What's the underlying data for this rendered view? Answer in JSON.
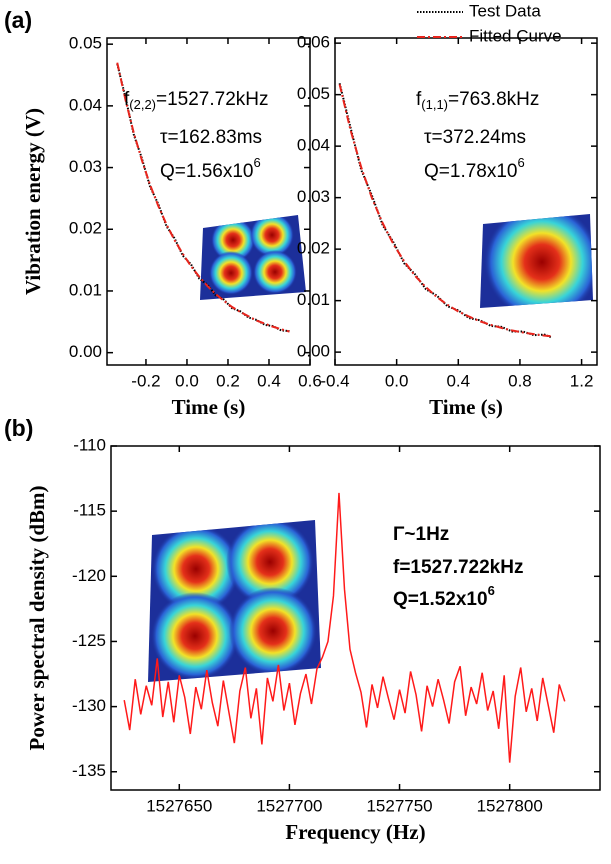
{
  "chart_data": [
    {
      "type": "line",
      "panel_label": "(a)",
      "ylabel": "Vibration energy (V)",
      "xlabel": "Time (s)",
      "xlim": [
        -0.39,
        0.6
      ],
      "ylim": [
        -0.002,
        0.051
      ],
      "xticks": [
        -0.2,
        {
          "value": 0,
          "label": "0.0"
        },
        0.2,
        0.4,
        0.6
      ],
      "yticks": [
        {
          "value": 0,
          "label": "0.00"
        },
        0.01,
        0.02,
        0.03,
        0.04,
        0.05
      ],
      "x": [
        -0.34,
        -0.3,
        -0.26,
        -0.22,
        -0.18,
        -0.14,
        -0.1,
        -0.06,
        -0.02,
        0.02,
        0.06,
        0.1,
        0.14,
        0.18,
        0.22,
        0.26,
        0.3,
        0.34,
        0.38,
        0.42,
        0.46,
        0.5
      ],
      "series": [
        {
          "color": "#000000",
          "linestyle": "dotted",
          "values": [
            0.0468,
            0.0414,
            0.0354,
            0.0315,
            0.0269,
            0.0241,
            0.0205,
            0.0185,
            0.0157,
            0.0143,
            0.012,
            0.011,
            0.0093,
            0.0086,
            0.0072,
            0.0067,
            0.0057,
            0.0053,
            0.0045,
            0.0043,
            0.0036,
            0.0035
          ]
        },
        {
          "color": "#e8241c",
          "linestyle": "dashdot",
          "values": [
            0.047,
            0.041,
            0.0357,
            0.0312,
            0.0272,
            0.0238,
            0.0208,
            0.0182,
            0.016,
            0.014,
            0.0123,
            0.0108,
            0.0095,
            0.0084,
            0.0074,
            0.0066,
            0.0059,
            0.0052,
            0.0047,
            0.0042,
            0.0038,
            0.0034
          ]
        }
      ],
      "annotations": [
        {
          "text": "f",
          "sub": "(2,2)",
          "after": "=1527.72kHz"
        },
        {
          "text": "τ=162.83ms"
        },
        {
          "text": "Q=1.56x10",
          "sup": "6"
        }
      ]
    },
    {
      "type": "line",
      "xlabel": "Time (s)",
      "legend": "upper right",
      "xlim": [
        -0.4,
        1.3
      ],
      "ylim": [
        -0.0025,
        0.061
      ],
      "xticks": [
        -0.4,
        {
          "value": 0,
          "label": "0.0"
        },
        0.4,
        0.8,
        1.2
      ],
      "yticks": [
        {
          "value": 0,
          "label": "0.00"
        },
        0.01,
        0.02,
        0.03,
        0.04,
        0.05,
        0.06
      ],
      "x": [
        -0.37,
        -0.3,
        -0.23,
        -0.16,
        -0.09,
        -0.02,
        0.05,
        0.12,
        0.19,
        0.26,
        0.33,
        0.4,
        0.47,
        0.54,
        0.61,
        0.68,
        0.75,
        0.82,
        0.89,
        0.96,
        1.0
      ],
      "series": [
        {
          "name": "Test Data",
          "color": "#000000",
          "linestyle": "dotted",
          "values": [
            0.0522,
            0.0437,
            0.0354,
            0.0304,
            0.0246,
            0.0213,
            0.0172,
            0.0151,
            0.0122,
            0.011,
            0.0089,
            0.0081,
            0.0066,
            0.0062,
            0.0051,
            0.0049,
            0.004,
            0.004,
            0.0033,
            0.0034,
            0.0029
          ]
        },
        {
          "name": "Fitted Curve",
          "color": "#e8241c",
          "linestyle": "dashdot",
          "values": [
            0.052,
            0.0432,
            0.0359,
            0.0299,
            0.025,
            0.0209,
            0.0176,
            0.0148,
            0.0126,
            0.0107,
            0.0092,
            0.0079,
            0.0069,
            0.006,
            0.0053,
            0.0047,
            0.0042,
            0.0038,
            0.0035,
            0.0032,
            0.0031
          ]
        }
      ],
      "annotations": [
        {
          "text": "f",
          "sub": "(1,1)",
          "after": "=763.8kHz"
        },
        {
          "text": "τ=372.24ms"
        },
        {
          "text": "Q=1.78x10",
          "sup": "6"
        }
      ]
    },
    {
      "type": "line",
      "panel_label": "(b)",
      "ylabel": "Power spectral density (dBm)",
      "xlabel": "Frequency (Hz)",
      "xlim": [
        1527619,
        1527841
      ],
      "ylim": [
        -136.4,
        -110
      ],
      "xticks": [
        1527650,
        1527700,
        1527750,
        1527800
      ],
      "yticks": [
        -135,
        -130,
        -125,
        -120,
        -115,
        -110
      ],
      "x": [
        1527625,
        1527627.5,
        1527630,
        1527632.5,
        1527635,
        1527637.5,
        1527640,
        1527642.5,
        1527645,
        1527647.5,
        1527650,
        1527652.5,
        1527655,
        1527657.5,
        1527660,
        1527662.5,
        1527665,
        1527667.5,
        1527670,
        1527672.5,
        1527675,
        1527677.5,
        1527680,
        1527682.5,
        1527685,
        1527687.5,
        1527690,
        1527692.5,
        1527695,
        1527697.5,
        1527700,
        1527702.5,
        1527705,
        1527707.5,
        1527710,
        1527712.5,
        1527715,
        1527717.5,
        1527720,
        1527722.5,
        1527725,
        1527727.5,
        1527730,
        1527732.5,
        1527735,
        1527737.5,
        1527740,
        1527742.5,
        1527745,
        1527747.5,
        1527750,
        1527752.5,
        1527755,
        1527757.5,
        1527760,
        1527762.5,
        1527765,
        1527767.5,
        1527770,
        1527772.5,
        1527775,
        1527777.5,
        1527780,
        1527782.5,
        1527785,
        1527787.5,
        1527790,
        1527792.5,
        1527795,
        1527797.5,
        1527800,
        1527802.5,
        1527805,
        1527807.5,
        1527810,
        1527812.5,
        1527815,
        1527817.5,
        1527820,
        1527822.5,
        1527825
      ],
      "series": [
        {
          "color": "#ff1a1a",
          "linestyle": "solid",
          "values": [
            -129.5,
            -131.8,
            -127.9,
            -130.6,
            -128.4,
            -129.9,
            -126.3,
            -130.8,
            -128.1,
            -131.2,
            -127.6,
            -129.3,
            -132.1,
            -128.5,
            -130.2,
            -127.2,
            -129.7,
            -131.5,
            -128.0,
            -130.4,
            -132.8,
            -128.8,
            -127.0,
            -130.9,
            -128.6,
            -132.9,
            -127.8,
            -129.6,
            -126.8,
            -130.3,
            -128.2,
            -131.4,
            -129.0,
            -127.5,
            -129.8,
            -127.1,
            -126.2,
            -125.0,
            -121.5,
            -113.6,
            -121.0,
            -125.6,
            -127.4,
            -128.9,
            -131.6,
            -128.3,
            -130.1,
            -127.7,
            -129.4,
            -131.0,
            -128.7,
            -130.5,
            -127.3,
            -129.1,
            -131.9,
            -128.4,
            -130.0,
            -127.9,
            -129.5,
            -131.3,
            -128.1,
            -126.9,
            -130.7,
            -128.5,
            -129.8,
            -127.4,
            -130.3,
            -128.8,
            -131.7,
            -127.6,
            -134.3,
            -129.2,
            -127.0,
            -130.4,
            -128.6,
            -131.1,
            -127.8,
            -129.9,
            -132.0,
            -128.3,
            -129.6
          ]
        }
      ],
      "annotation_bold": true,
      "annotations": [
        {
          "text": "Γ~1Hz"
        },
        {
          "text": "f=1527.722kHz"
        },
        {
          "text": "Q=1.52x10",
          "sup": "6"
        }
      ]
    }
  ]
}
